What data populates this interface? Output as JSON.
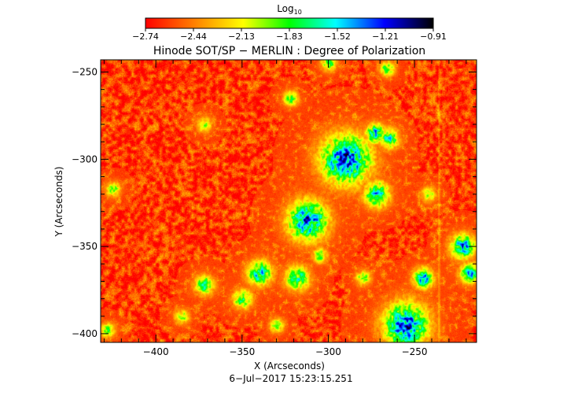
{
  "colorbar": {
    "label_main": "Log",
    "label_sub": "10",
    "ticks": [
      "−2.74",
      "−2.44",
      "−2.13",
      "−1.83",
      "−1.52",
      "−1.21",
      "−0.91"
    ],
    "range": [
      -2.74,
      -0.91
    ],
    "colormap": [
      "#ff0000",
      "#ff8000",
      "#ffff00",
      "#00ff00",
      "#00ffff",
      "#0000ff",
      "#000000"
    ]
  },
  "chart_data": {
    "type": "heatmap",
    "title": "Hinode SOT/SP − MERLIN : Degree of Polarization",
    "xlabel": "X (Arcseconds)",
    "ylabel": "Y (Arcseconds)",
    "xlim": [
      -432,
      -214
    ],
    "ylim": [
      -405,
      -243
    ],
    "xticks": [
      -400,
      -350,
      -300,
      -250
    ],
    "yticks": [
      -250,
      -300,
      -350,
      -400
    ],
    "xtick_labels": [
      "−400",
      "−350",
      "−300",
      "−250"
    ],
    "ytick_labels": [
      "−250",
      "−300",
      "−350",
      "−400"
    ],
    "value_range": [
      -2.74,
      -0.91
    ],
    "background_value": -2.6,
    "features": [
      {
        "x": -290,
        "y": -300,
        "peak": -1.3,
        "spread": 10
      },
      {
        "x": -312,
        "y": -335,
        "peak": -1.35,
        "spread": 8
      },
      {
        "x": -272,
        "y": -320,
        "peak": -1.5,
        "spread": 5
      },
      {
        "x": -255,
        "y": -395,
        "peak": -1.3,
        "spread": 9
      },
      {
        "x": -245,
        "y": -368,
        "peak": -1.45,
        "spread": 4
      },
      {
        "x": -340,
        "y": -365,
        "peak": -1.55,
        "spread": 5
      },
      {
        "x": -318,
        "y": -368,
        "peak": -1.7,
        "spread": 5
      },
      {
        "x": -372,
        "y": -372,
        "peak": -1.75,
        "spread": 4
      },
      {
        "x": -273,
        "y": -285,
        "peak": -1.55,
        "spread": 4
      },
      {
        "x": -265,
        "y": -288,
        "peak": -1.65,
        "spread": 4
      },
      {
        "x": -222,
        "y": -350,
        "peak": -1.45,
        "spread": 5
      },
      {
        "x": -218,
        "y": -365,
        "peak": -1.5,
        "spread": 4
      },
      {
        "x": -322,
        "y": -265,
        "peak": -1.85,
        "spread": 3
      },
      {
        "x": -300,
        "y": -245,
        "peak": -1.8,
        "spread": 3
      },
      {
        "x": -266,
        "y": -248,
        "peak": -1.8,
        "spread": 3
      },
      {
        "x": -350,
        "y": -380,
        "peak": -1.8,
        "spread": 4
      },
      {
        "x": -385,
        "y": -390,
        "peak": -1.95,
        "spread": 3
      },
      {
        "x": -425,
        "y": -317,
        "peak": -1.9,
        "spread": 3
      },
      {
        "x": -428,
        "y": -398,
        "peak": -1.9,
        "spread": 3
      },
      {
        "x": -372,
        "y": -280,
        "peak": -1.95,
        "spread": 3
      },
      {
        "x": -305,
        "y": -355,
        "peak": -1.85,
        "spread": 3
      },
      {
        "x": -280,
        "y": -368,
        "peak": -1.9,
        "spread": 3
      },
      {
        "x": -242,
        "y": -320,
        "peak": -1.95,
        "spread": 3
      },
      {
        "x": -330,
        "y": -395,
        "peak": -1.95,
        "spread": 3
      }
    ],
    "streak_x": -236
  },
  "footer": {
    "date": "6−Jul−2017 15:23:15.251"
  }
}
